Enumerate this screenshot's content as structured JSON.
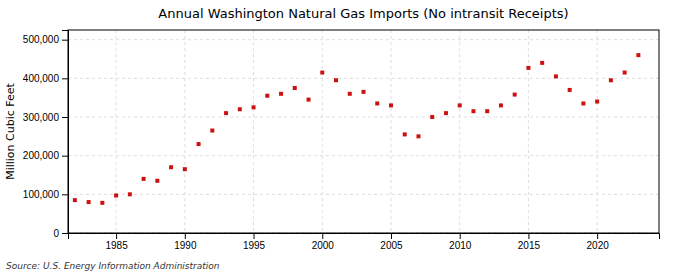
{
  "chart_data": {
    "type": "scatter",
    "title": "Annual Washington Natural Gas Imports (No intransit Receipts)",
    "ylabel": "Million Cubic Feet",
    "annotations": [
      "Source: U.S. Energy Information Administration"
    ],
    "x": [
      1982,
      1983,
      1984,
      1985,
      1986,
      1987,
      1988,
      1989,
      1990,
      1991,
      1992,
      1993,
      1994,
      1995,
      1996,
      1997,
      1998,
      1999,
      2000,
      2001,
      2002,
      2003,
      2004,
      2005,
      2006,
      2007,
      2008,
      2009,
      2010,
      2011,
      2012,
      2013,
      2014,
      2015,
      2016,
      2017,
      2018,
      2019,
      2020,
      2021,
      2022,
      2023
    ],
    "values": [
      85000,
      80000,
      78000,
      97000,
      100000,
      140000,
      135000,
      170000,
      165000,
      230000,
      265000,
      310000,
      320000,
      325000,
      355000,
      360000,
      375000,
      345000,
      415000,
      395000,
      360000,
      365000,
      335000,
      330000,
      255000,
      250000,
      300000,
      310000,
      330000,
      315000,
      315000,
      330000,
      358000,
      427000,
      440000,
      405000,
      370000,
      335000,
      340000,
      395000,
      415000,
      460000
    ],
    "color": "#cc1111",
    "marker": "square",
    "xlim": [
      1981.5,
      2024.5
    ],
    "ylim": [
      0,
      525000
    ],
    "xticks": [
      1985,
      1990,
      1995,
      2000,
      2005,
      2010,
      2015,
      2020
    ],
    "yticks": [
      0,
      {
        "value": 100000,
        "label": "100,000"
      },
      {
        "value": 200000,
        "label": "200,000"
      },
      {
        "value": 300000,
        "label": "300,000"
      },
      {
        "value": 400000,
        "label": "400,000"
      },
      {
        "value": 500000,
        "label": "500,000"
      }
    ],
    "grid": true
  }
}
